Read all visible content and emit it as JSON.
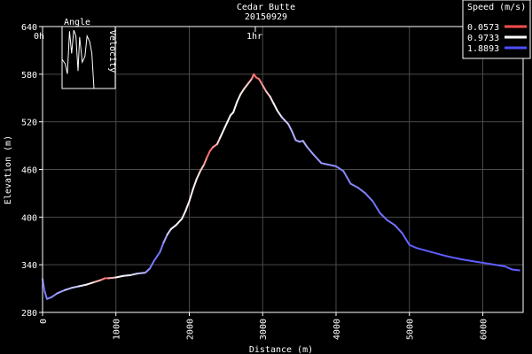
{
  "chart_data": {
    "type": "line",
    "title": "Cedar Butte",
    "subtitle": "20150929",
    "xlabel": "Distance (m)",
    "ylabel": "Elevation (m)",
    "xlim": [
      0,
      6550
    ],
    "ylim": [
      280,
      640
    ],
    "x_ticks": [
      0,
      1000,
      2000,
      3000,
      4000,
      5000,
      6000
    ],
    "y_ticks": [
      280,
      340,
      400,
      460,
      520,
      580,
      640
    ],
    "grid": true,
    "time_markers": [
      {
        "label": "0h",
        "x": 0
      },
      {
        "label": "1hr",
        "x": 2900
      }
    ],
    "legend": {
      "title": "Speed (m/s)",
      "placement": "top-right",
      "entries": [
        {
          "label": "0.0573",
          "color": "#ff4d4d"
        },
        {
          "label": "0.9733",
          "color": "#ffffff"
        },
        {
          "label": "1.8893",
          "color": "#4d4dff"
        }
      ]
    },
    "speed_range": [
      0.0573,
      1.8893
    ],
    "series": [
      {
        "points": [
          [
            0,
            322,
            1.8
          ],
          [
            30,
            306,
            1.7
          ],
          [
            60,
            297,
            1.6
          ],
          [
            120,
            299,
            1.6
          ],
          [
            200,
            304,
            1.5
          ],
          [
            300,
            308,
            1.4
          ],
          [
            400,
            311,
            1.3
          ],
          [
            500,
            313,
            1.2
          ],
          [
            600,
            315,
            1.0
          ],
          [
            700,
            318,
            0.8
          ],
          [
            800,
            321,
            0.5
          ],
          [
            850,
            323,
            0.2
          ],
          [
            900,
            323,
            0.3
          ],
          [
            1000,
            324,
            0.9
          ],
          [
            1100,
            326,
            1.0
          ],
          [
            1200,
            327,
            1.1
          ],
          [
            1300,
            329,
            1.2
          ],
          [
            1400,
            330,
            1.4
          ],
          [
            1460,
            335,
            1.6
          ],
          [
            1520,
            345,
            1.7
          ],
          [
            1600,
            356,
            1.7
          ],
          [
            1650,
            368,
            1.6
          ],
          [
            1700,
            378,
            1.3
          ],
          [
            1750,
            385,
            1.1
          ],
          [
            1820,
            390,
            1.0
          ],
          [
            1900,
            398,
            0.9
          ],
          [
            1950,
            408,
            0.9
          ],
          [
            2000,
            420,
            0.9
          ],
          [
            2050,
            435,
            0.9
          ],
          [
            2100,
            448,
            0.9
          ],
          [
            2150,
            458,
            0.8
          ],
          [
            2200,
            466,
            0.6
          ],
          [
            2240,
            475,
            0.3
          ],
          [
            2280,
            483,
            0.2
          ],
          [
            2320,
            488,
            0.3
          ],
          [
            2380,
            492,
            0.6
          ],
          [
            2420,
            500,
            0.9
          ],
          [
            2480,
            512,
            1.0
          ],
          [
            2520,
            520,
            1.0
          ],
          [
            2560,
            528,
            1.0
          ],
          [
            2600,
            532,
            1.0
          ],
          [
            2650,
            545,
            1.0
          ],
          [
            2700,
            555,
            0.9
          ],
          [
            2750,
            562,
            0.8
          ],
          [
            2800,
            568,
            0.7
          ],
          [
            2850,
            574,
            0.6
          ],
          [
            2880,
            580,
            0.2
          ],
          [
            2910,
            576,
            0.2
          ],
          [
            2950,
            574,
            0.3
          ],
          [
            3000,
            566,
            0.4
          ],
          [
            3050,
            558,
            0.6
          ],
          [
            3100,
            552,
            0.8
          ],
          [
            3150,
            543,
            0.9
          ],
          [
            3200,
            534,
            1.0
          ],
          [
            3260,
            526,
            1.2
          ],
          [
            3350,
            517,
            1.3
          ],
          [
            3400,
            508,
            1.4
          ],
          [
            3450,
            497,
            1.4
          ],
          [
            3500,
            495,
            1.5
          ],
          [
            3550,
            496,
            1.4
          ],
          [
            3600,
            489,
            1.4
          ],
          [
            3700,
            478,
            1.5
          ],
          [
            3800,
            468,
            1.5
          ],
          [
            3900,
            466,
            1.5
          ],
          [
            4000,
            464,
            1.6
          ],
          [
            4100,
            458,
            1.6
          ],
          [
            4150,
            450,
            1.6
          ],
          [
            4200,
            442,
            1.6
          ],
          [
            4300,
            437,
            1.6
          ],
          [
            4400,
            430,
            1.6
          ],
          [
            4500,
            420,
            1.7
          ],
          [
            4600,
            405,
            1.7
          ],
          [
            4700,
            396,
            1.7
          ],
          [
            4800,
            390,
            1.7
          ],
          [
            4900,
            380,
            1.7
          ],
          [
            5000,
            365,
            1.8
          ],
          [
            5100,
            361,
            1.8
          ],
          [
            5300,
            356,
            1.8
          ],
          [
            5500,
            351,
            1.8
          ],
          [
            5700,
            347,
            1.8
          ],
          [
            5900,
            344,
            1.8
          ],
          [
            6100,
            341,
            1.8
          ],
          [
            6300,
            338,
            1.8
          ],
          [
            6400,
            334,
            1.8
          ],
          [
            6500,
            333,
            1.8
          ]
        ]
      }
    ]
  },
  "inset": {
    "title": "Angle",
    "ylabel": "Velocity",
    "trace": [
      [
        0.0,
        0.5
      ],
      [
        0.06,
        0.42
      ],
      [
        0.1,
        0.25
      ],
      [
        0.14,
        0.98
      ],
      [
        0.18,
        0.6
      ],
      [
        0.22,
        1.0
      ],
      [
        0.26,
        0.9
      ],
      [
        0.3,
        0.3
      ],
      [
        0.33,
        0.88
      ],
      [
        0.38,
        0.45
      ],
      [
        0.43,
        0.55
      ],
      [
        0.47,
        0.9
      ],
      [
        0.52,
        0.8
      ],
      [
        0.56,
        0.6
      ],
      [
        0.6,
        0.0
      ]
    ]
  }
}
